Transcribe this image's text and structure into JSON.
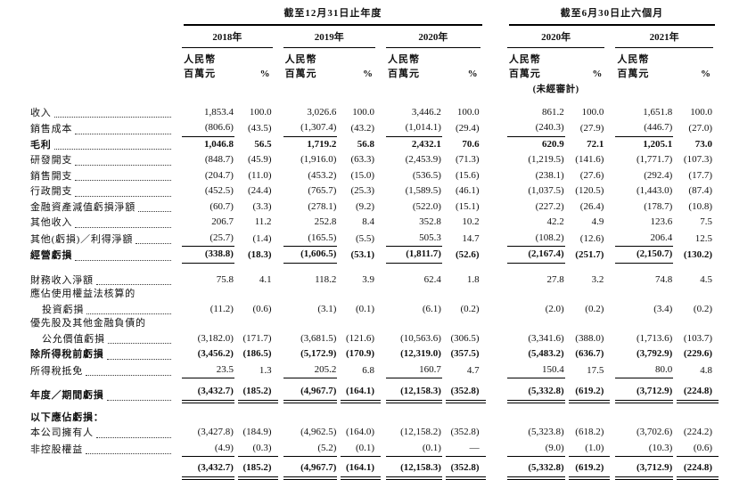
{
  "table": {
    "period_groups": [
      {
        "title": "截至12月31日止年度",
        "years": [
          "2018年",
          "2019年",
          "2020年"
        ]
      },
      {
        "title": "截至6月30日止六個月",
        "years": [
          "2020年",
          "2021年"
        ]
      }
    ],
    "col_headers": {
      "currency": "人民幣\n百萬元",
      "percent": "%",
      "unaudited_note": "(未經審計)"
    },
    "rows": [
      {
        "label": "收入",
        "leaders": true,
        "values": [
          "1,853.4",
          "100.0",
          "3,026.6",
          "100.0",
          "3,446.2",
          "100.0",
          "861.2",
          "100.0",
          "1,651.8",
          "100.0"
        ]
      },
      {
        "label": "銷售成本",
        "leaders": true,
        "values": [
          "(806.6)",
          "(43.5)",
          "(1,307.4)",
          "(43.2)",
          "(1,014.1)",
          "(29.4)",
          "(240.3)",
          "(27.9)",
          "(446.7)",
          "(27.0)"
        ],
        "rule": {
          "cols": "val",
          "style": "single"
        }
      },
      {
        "label": "毛利",
        "bold": true,
        "leaders": true,
        "values": [
          "1,046.8",
          "56.5",
          "1,719.2",
          "56.8",
          "2,432.1",
          "70.6",
          "620.9",
          "72.1",
          "1,205.1",
          "73.0"
        ]
      },
      {
        "label": "研發開支",
        "leaders": true,
        "values": [
          "(848.7)",
          "(45.9)",
          "(1,916.0)",
          "(63.3)",
          "(2,453.9)",
          "(71.3)",
          "(1,219.5)",
          "(141.6)",
          "(1,771.7)",
          "(107.3)"
        ]
      },
      {
        "label": "銷售開支",
        "leaders": true,
        "values": [
          "(204.7)",
          "(11.0)",
          "(453.2)",
          "(15.0)",
          "(536.5)",
          "(15.6)",
          "(238.1)",
          "(27.6)",
          "(292.4)",
          "(17.7)"
        ]
      },
      {
        "label": "行政開支",
        "leaders": true,
        "values": [
          "(452.5)",
          "(24.4)",
          "(765.7)",
          "(25.3)",
          "(1,589.5)",
          "(46.1)",
          "(1,037.5)",
          "(120.5)",
          "(1,443.0)",
          "(87.4)"
        ]
      },
      {
        "label": "金融資產減值虧損淨額",
        "leaders": true,
        "values": [
          "(60.7)",
          "(3.3)",
          "(278.1)",
          "(9.2)",
          "(522.0)",
          "(15.1)",
          "(227.2)",
          "(26.4)",
          "(178.7)",
          "(10.8)"
        ]
      },
      {
        "label": "其他收入",
        "leaders": true,
        "values": [
          "206.7",
          "11.2",
          "252.8",
          "8.4",
          "352.8",
          "10.2",
          "42.2",
          "4.9",
          "123.6",
          "7.5"
        ]
      },
      {
        "label": "其他(虧損)／利得淨額",
        "leaders": true,
        "values": [
          "(25.7)",
          "(1.4)",
          "(165.5)",
          "(5.5)",
          "505.3",
          "14.7",
          "(108.2)",
          "(12.6)",
          "206.4",
          "12.5"
        ],
        "rule": {
          "cols": "val",
          "style": "single"
        }
      },
      {
        "label": "經營虧損",
        "bold": true,
        "leaders": true,
        "values": [
          "(338.8)",
          "(18.3)",
          "(1,606.5)",
          "(53.1)",
          "(1,811.7)",
          "(52.6)",
          "(2,167.4)",
          "(251.7)",
          "(2,150.7)",
          "(130.2)"
        ],
        "rule": {
          "cols": "val",
          "style": "single"
        }
      },
      {
        "spacer": 10
      },
      {
        "label": "財務收入淨額",
        "leaders": true,
        "values": [
          "75.8",
          "4.1",
          "118.2",
          "3.9",
          "62.4",
          "1.8",
          "27.8",
          "3.2",
          "74.8",
          "4.5"
        ]
      },
      {
        "label": "應佔使用權益法核算的",
        "leaders": false,
        "values": null
      },
      {
        "label": "投資虧損",
        "indent": true,
        "leaders": true,
        "values": [
          "(11.2)",
          "(0.6)",
          "(3.1)",
          "(0.1)",
          "(6.1)",
          "(0.2)",
          "(2.0)",
          "(0.2)",
          "(3.4)",
          "(0.2)"
        ]
      },
      {
        "label": "優先股及其他金融負債的",
        "leaders": false,
        "values": null
      },
      {
        "label": "公允價值虧損",
        "indent": true,
        "leaders": true,
        "values": [
          "(3,182.0)",
          "(171.7)",
          "(3,681.5)",
          "(121.6)",
          "(10,563.6)",
          "(306.5)",
          "(3,341.6)",
          "(388.0)",
          "(1,713.6)",
          "(103.7)"
        ]
      },
      {
        "label": "除所得稅前虧損",
        "bold": true,
        "leaders": true,
        "values": [
          "(3,456.2)",
          "(186.5)",
          "(5,172.9)",
          "(170.9)",
          "(12,319.0)",
          "(357.5)",
          "(5,483.2)",
          "(636.7)",
          "(3,792.9)",
          "(229.6)"
        ]
      },
      {
        "label": "所得稅抵免",
        "leaders": true,
        "values": [
          "23.5",
          "1.3",
          "205.2",
          "6.8",
          "160.7",
          "4.7",
          "150.4",
          "17.5",
          "80.0",
          "4.8"
        ],
        "rule": {
          "cols": "val",
          "style": "single"
        }
      },
      {
        "spacer": 6
      },
      {
        "label": "年度／期間虧損",
        "bold": true,
        "leaders": true,
        "values": [
          "(3,432.7)",
          "(185.2)",
          "(4,967.7)",
          "(164.1)",
          "(12,158.3)",
          "(352.8)",
          "(5,332.8)",
          "(619.2)",
          "(3,712.9)",
          "(224.8)"
        ],
        "rule": {
          "cols": "all",
          "style": "double"
        }
      },
      {
        "spacer": 9
      },
      {
        "label": "以下應佔虧損：",
        "bold": true,
        "leaders": false,
        "values": null
      },
      {
        "label": "本公司擁有人",
        "leaders": true,
        "values": [
          "(3,427.8)",
          "(184.9)",
          "(4,962.5)",
          "(164.0)",
          "(12,158.2)",
          "(352.8)",
          "(5,323.8)",
          "(618.2)",
          "(3,702.6)",
          "(224.2)"
        ]
      },
      {
        "label": "非控股權益",
        "leaders": true,
        "values": [
          "(4.9)",
          "(0.3)",
          "(5.2)",
          "(0.1)",
          "(0.1)",
          "—",
          "(9.0)",
          "(1.0)",
          "(10.3)",
          "(0.6)"
        ],
        "rule": {
          "cols": "all",
          "style": "single"
        }
      },
      {
        "spacer": 4
      },
      {
        "label": "",
        "bold": true,
        "leaders": false,
        "values": [
          "(3,432.7)",
          "(185.2)",
          "(4,967.7)",
          "(164.1)",
          "(12,158.3)",
          "(352.8)",
          "(5,332.8)",
          "(619.2)",
          "(3,712.9)",
          "(224.8)"
        ],
        "rule": {
          "cols": "all",
          "style": "double"
        }
      }
    ]
  }
}
